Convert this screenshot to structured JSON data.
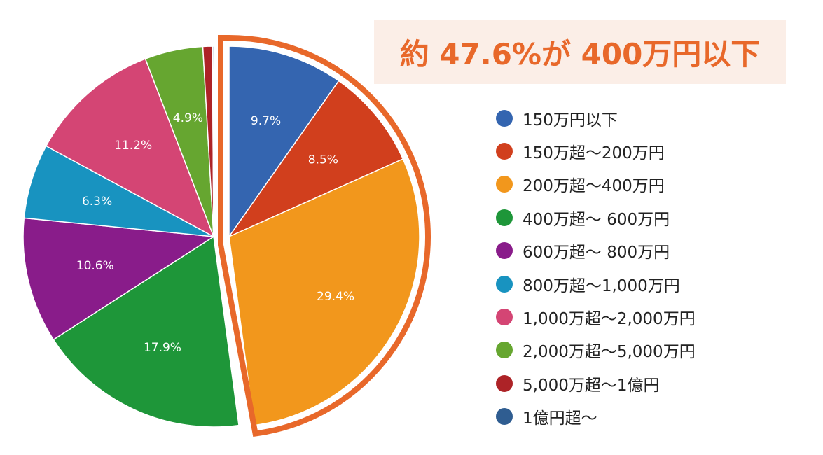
{
  "callout": {
    "text": "約 47.6%が 400万円以下",
    "color": "#e8682a",
    "background": "#fbeee7"
  },
  "highlight": {
    "color": "#e8682a",
    "covers_categories": [
      "150万円以下",
      "150万超〜200万円",
      "200万超〜400万円"
    ]
  },
  "chart_data": {
    "type": "pie",
    "title": "",
    "legend_position": "right",
    "categories": [
      "150万円以下",
      "150万超〜200万円",
      "200万超〜400万円",
      "400万超〜 600万円",
      "600万超〜 800万円",
      "800万超〜1,000万円",
      "1,000万超〜2,000万円",
      "2,000万超〜5,000万円",
      "5,000万超〜1億円",
      "1億円超〜"
    ],
    "values": [
      9.7,
      8.5,
      29.4,
      17.9,
      10.6,
      6.3,
      11.2,
      4.9,
      0.8,
      0.1
    ],
    "data_labels": [
      "9.7%",
      "8.5%",
      "29.4%",
      "17.9%",
      "10.6%",
      "6.3%",
      "11.2%",
      "4.9%",
      "",
      ""
    ],
    "colors": [
      "#3465b0",
      "#d13f1d",
      "#f2971c",
      "#1e9639",
      "#891c8a",
      "#1893c0",
      "#d44574",
      "#66a630",
      "#ad2327",
      "#2f5d91"
    ]
  }
}
